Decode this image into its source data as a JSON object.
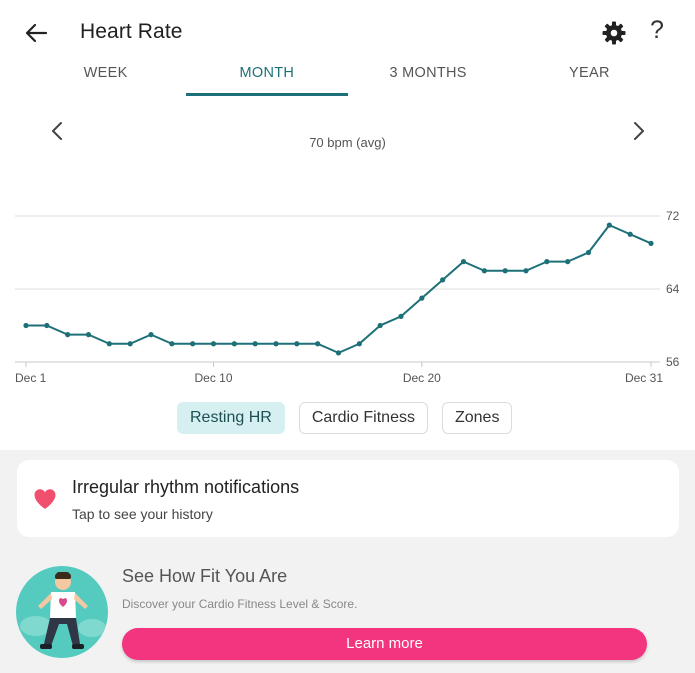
{
  "header": {
    "title": "Heart Rate",
    "back_icon": "arrow-left-icon",
    "settings_icon": "gear-icon",
    "help_label": "?"
  },
  "tabs": [
    {
      "label": "WEEK",
      "active": false
    },
    {
      "label": "MONTH",
      "active": true
    },
    {
      "label": "3 MONTHS",
      "active": false
    },
    {
      "label": "YEAR",
      "active": false
    }
  ],
  "summary": {
    "avg_label": "70 bpm (avg)"
  },
  "colors": {
    "accent": "#1d7078",
    "chip_active_bg": "#d6f0f2",
    "heart": "#f0506e",
    "cta": "#f2357e"
  },
  "chart_data": {
    "type": "line",
    "x": [
      1,
      2,
      3,
      4,
      5,
      6,
      7,
      8,
      9,
      10,
      11,
      12,
      13,
      14,
      15,
      16,
      17,
      18,
      19,
      20,
      21,
      22,
      23,
      24,
      25,
      26,
      27,
      28,
      29,
      30,
      31
    ],
    "values": [
      60,
      60,
      59,
      59,
      58,
      58,
      59,
      58,
      58,
      58,
      58,
      58,
      58,
      58,
      58,
      57,
      58,
      60,
      61,
      63,
      65,
      67,
      66,
      66,
      66,
      67,
      67,
      68,
      71,
      70,
      69
    ],
    "x_ticks": [
      {
        "x": 1,
        "label": "Dec 1"
      },
      {
        "x": 10,
        "label": "Dec 10"
      },
      {
        "x": 20,
        "label": "Dec 20"
      },
      {
        "x": 31,
        "label": "Dec 31"
      }
    ],
    "y_ticks": [
      56,
      64,
      72
    ],
    "ylim": [
      56,
      72
    ],
    "xlim": [
      1,
      31
    ],
    "grid": true,
    "line_color": "#1d7078"
  },
  "chips": [
    {
      "label": "Resting HR",
      "active": true
    },
    {
      "label": "Cardio Fitness",
      "active": false
    },
    {
      "label": "Zones",
      "active": false
    }
  ],
  "notifications_card": {
    "title": "Irregular rhythm notifications",
    "subtitle": "Tap to see your history",
    "icon": "heart-icon"
  },
  "promo": {
    "title": "See How Fit You Are",
    "subtitle": "Discover your Cardio Fitness Level & Score.",
    "button_label": "Learn more"
  }
}
